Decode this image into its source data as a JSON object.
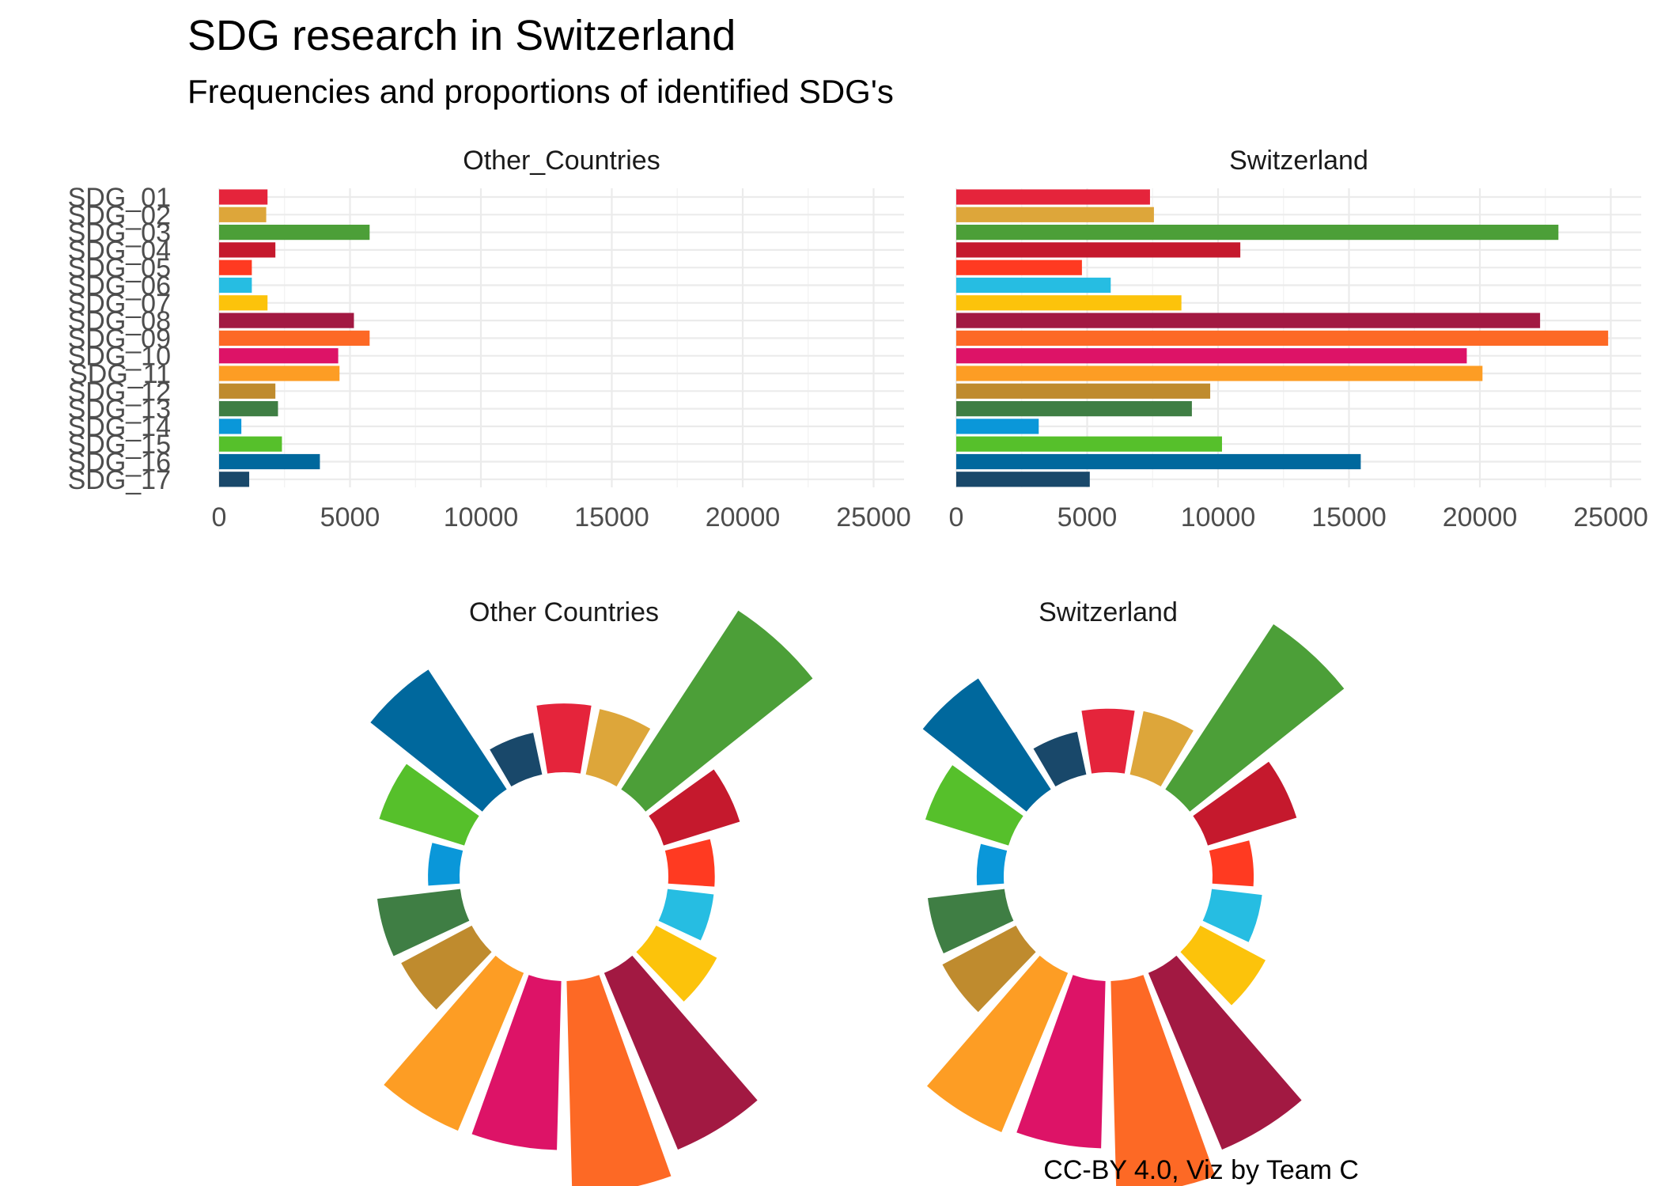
{
  "title": "SDG research in Switzerland",
  "subtitle": "Frequencies and proportions of identified SDG's",
  "caption": "CC-BY 4.0, Viz by Team C",
  "chart_data": [
    {
      "type": "bar",
      "orientation": "horizontal",
      "facets": [
        "Other_Countries",
        "Switzerland"
      ],
      "categories": [
        "SDG_01",
        "SDG_02",
        "SDG_03",
        "SDG_04",
        "SDG_05",
        "SDG_06",
        "SDG_07",
        "SDG_08",
        "SDG_09",
        "SDG_10",
        "SDG_11",
        "SDG_12",
        "SDG_13",
        "SDG_14",
        "SDG_15",
        "SDG_16",
        "SDG_17"
      ],
      "colors": [
        "#E5243B",
        "#DDA63A",
        "#4C9F38",
        "#C5192D",
        "#FF3A21",
        "#26BDE2",
        "#FCC30B",
        "#A21942",
        "#FD6925",
        "#DD1367",
        "#FD9D24",
        "#BF8B2E",
        "#3F7E44",
        "#0A97D9",
        "#56C02B",
        "#00689D",
        "#19486A"
      ],
      "series": [
        {
          "facet": "Other_Countries",
          "values": [
            1850,
            1800,
            5750,
            2150,
            1250,
            1250,
            1850,
            5150,
            5750,
            4550,
            4600,
            2150,
            2250,
            850,
            2400,
            3850,
            1150
          ]
        },
        {
          "facet": "Switzerland",
          "values": [
            7400,
            7550,
            23000,
            10850,
            4800,
            5900,
            8600,
            22300,
            24900,
            19500,
            20100,
            9700,
            9000,
            3150,
            10150,
            15450,
            5100
          ]
        }
      ],
      "xticks": [
        "0",
        "5000",
        "10000",
        "15000",
        "20000",
        "25000"
      ],
      "xlim": [
        0,
        26000
      ],
      "xlabel": "",
      "ylabel": "",
      "grid": true
    },
    {
      "type": "pie",
      "style": "polar-bar",
      "facets": [
        "Other  Countries",
        "Switzerland"
      ],
      "note": "same SDG_01–SDG_17 series as the bar chart, shown as proportions; segment radius proportional to frequency"
    }
  ]
}
